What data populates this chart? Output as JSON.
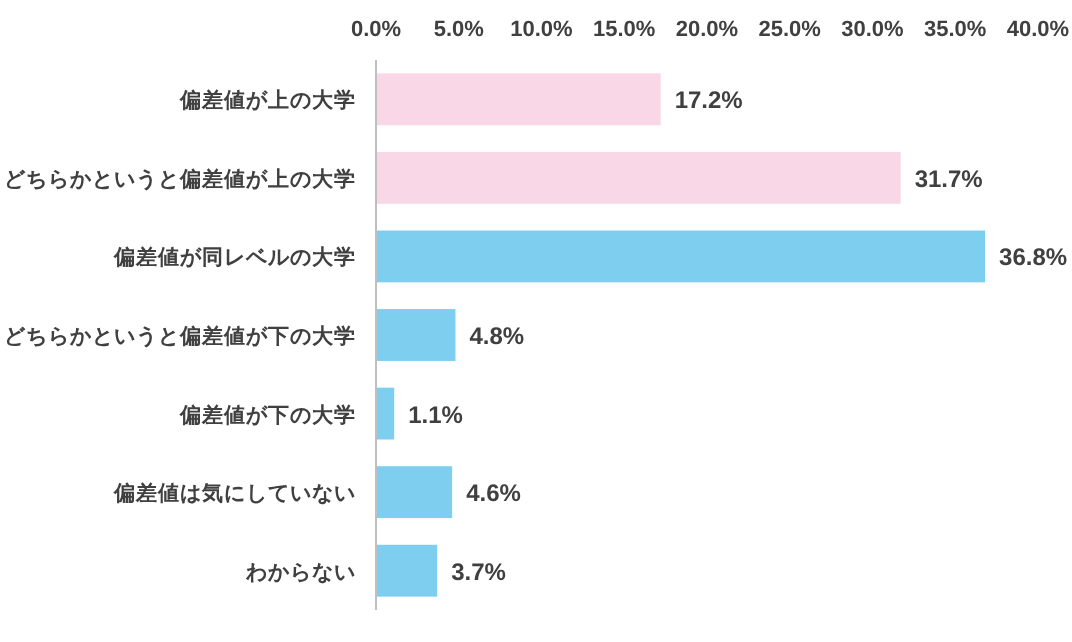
{
  "chart_data": {
    "type": "bar",
    "orientation": "horizontal",
    "categories": [
      "偏差値が上の大学",
      "どちらかというと偏差値が上の大学",
      "偏差値が同レベルの大学",
      "どちらかというと偏差値が下の大学",
      "偏差値が下の大学",
      "偏差値は気にしていない",
      "わからない"
    ],
    "values": [
      17.2,
      31.7,
      36.8,
      4.8,
      1.1,
      4.6,
      3.7
    ],
    "colors": [
      "#f9d7e6",
      "#f9d7e6",
      "#7ecef0",
      "#7ecef0",
      "#7ecef0",
      "#7ecef0",
      "#7ecef0"
    ],
    "value_labels": [
      "17.2%",
      "31.7%",
      "36.8%",
      "4.8%",
      "1.1%",
      "4.6%",
      "3.7%"
    ],
    "xlim": [
      0,
      40
    ],
    "xticks": [
      {
        "value": 0,
        "label": "0.0%"
      },
      {
        "value": 5,
        "label": "5.0%"
      },
      {
        "value": 10,
        "label": "10.0%"
      },
      {
        "value": 15,
        "label": "15.0%"
      },
      {
        "value": 20,
        "label": "20.0%"
      },
      {
        "value": 25,
        "label": "25.0%"
      },
      {
        "value": 30,
        "label": "30.0%"
      },
      {
        "value": 35,
        "label": "35.0%"
      },
      {
        "value": 40,
        "label": "40.0%"
      }
    ],
    "grid": false
  }
}
